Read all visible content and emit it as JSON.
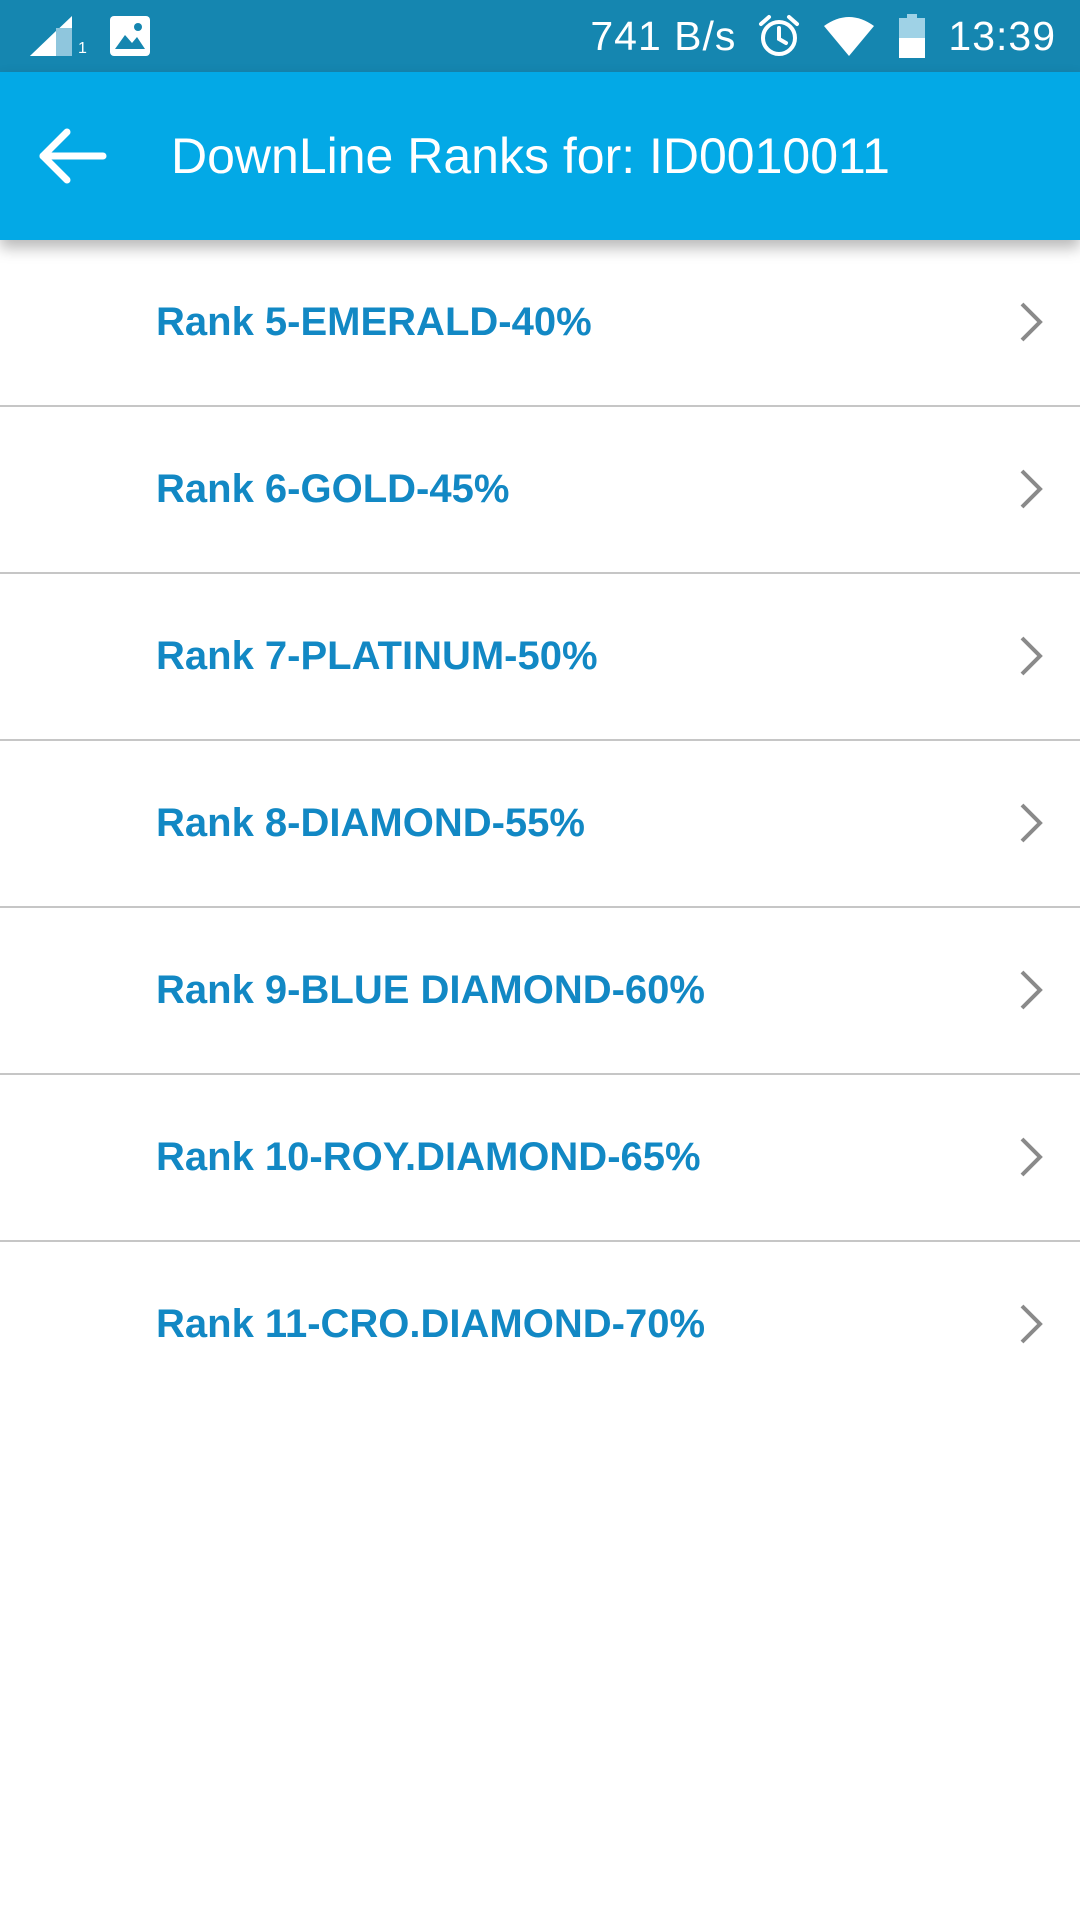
{
  "status_bar": {
    "net_speed": "741 B/s",
    "time": "13:39",
    "sim_index": "1",
    "icons": [
      "signal-icon",
      "image-notification-icon",
      "alarm-icon",
      "wifi-icon",
      "battery-icon"
    ]
  },
  "app_bar": {
    "title": "DownLine Ranks for: ID0010011",
    "back_icon": "back-arrow-icon",
    "color": "#03a9e6"
  },
  "ranks": [
    {
      "label": "Rank 5-EMERALD-40%"
    },
    {
      "label": "Rank 6-GOLD-45%"
    },
    {
      "label": "Rank 7-PLATINUM-50%"
    },
    {
      "label": "Rank 8-DIAMOND-55%"
    },
    {
      "label": "Rank 9-BLUE DIAMOND-60%"
    },
    {
      "label": "Rank 10-ROY.DIAMOND-65%"
    },
    {
      "label": "Rank 11-CRO.DIAMOND-70%"
    }
  ],
  "colors": {
    "status_bar": "#1586b0",
    "rank_text": "#1288c4",
    "chevron": "#8a8a8a",
    "divider": "#c6c6c6"
  }
}
